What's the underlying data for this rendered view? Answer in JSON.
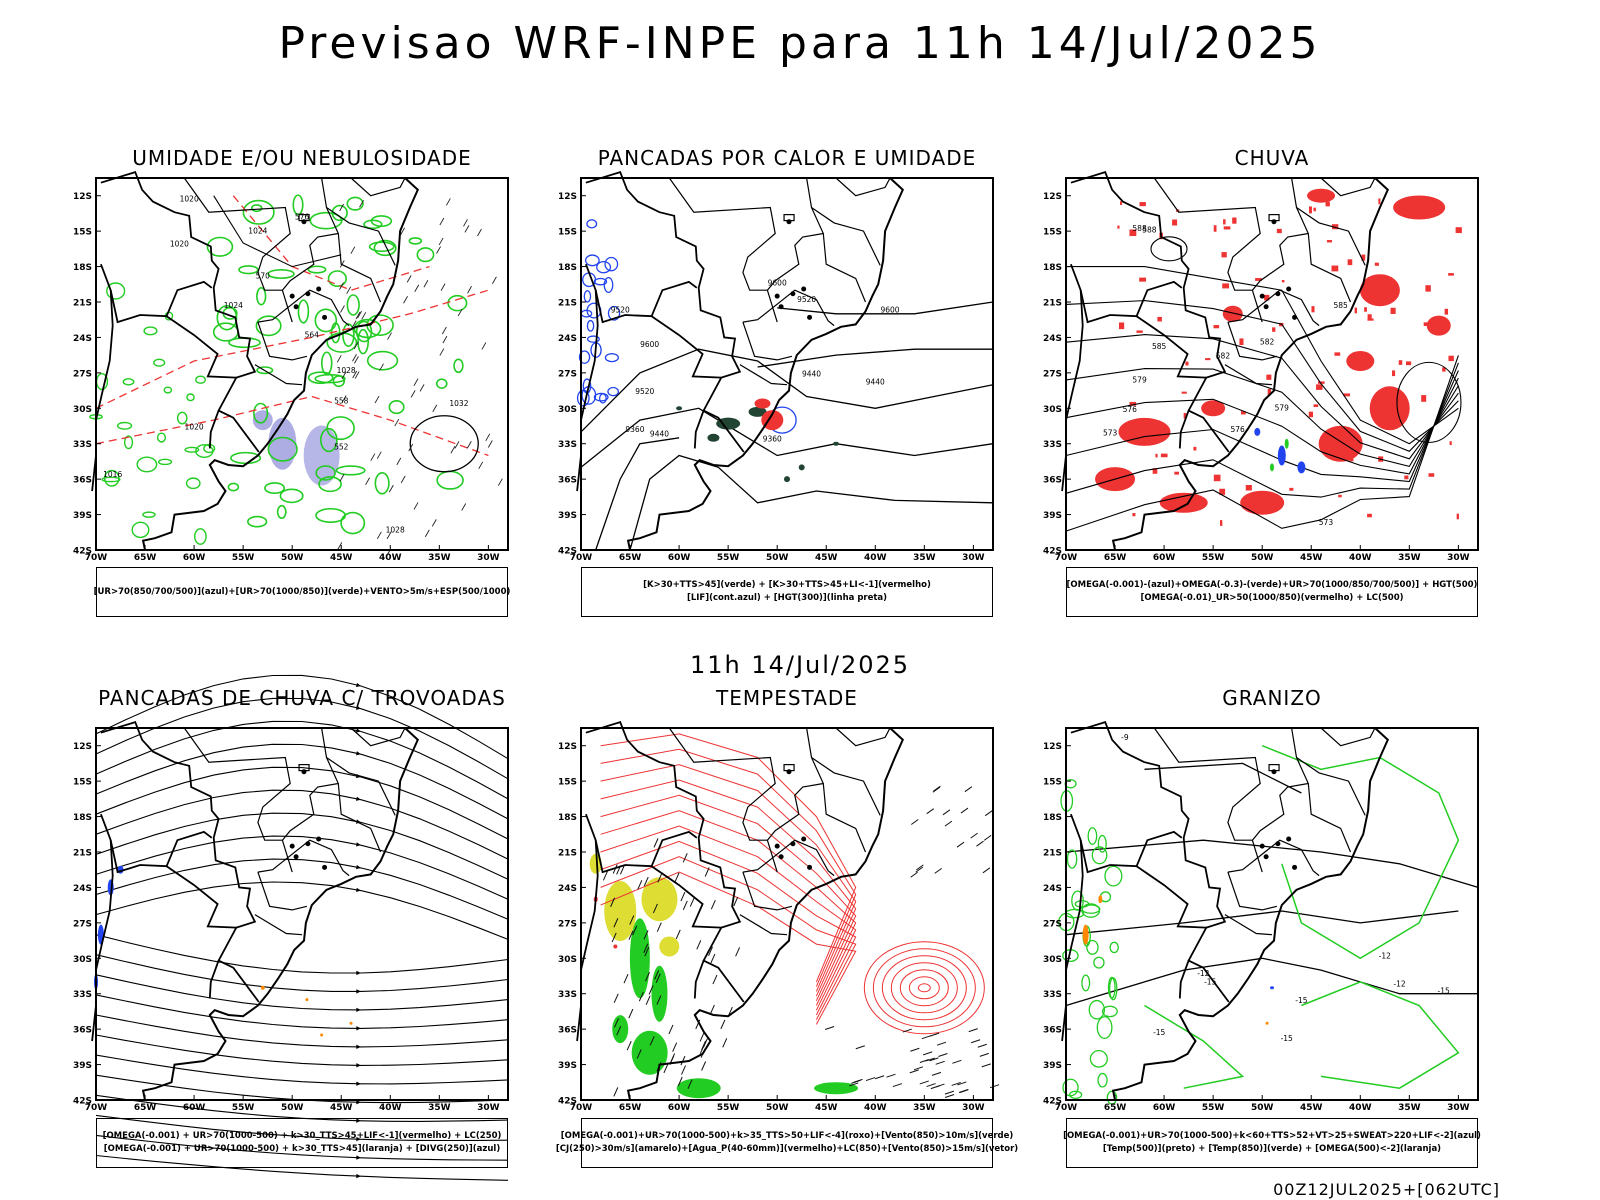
{
  "title": "Previsao WRF-INPE  para 11h 14/Jul/2025",
  "mid_title": "11h 14/Jul/2025",
  "footer": "00Z12JUL2025+[062UTC]",
  "axes": {
    "lat_labels": [
      "12S",
      "15S",
      "18S",
      "21S",
      "24S",
      "27S",
      "30S",
      "33S",
      "36S",
      "39S",
      "42S"
    ],
    "lon_labels": [
      "70W",
      "65W",
      "60W",
      "55W",
      "50W",
      "45W",
      "40W",
      "35W",
      "30W"
    ]
  },
  "colors": {
    "red": "#ee3333",
    "green": "#22cc22",
    "blue": "#2244ee",
    "purple": "#9999dd",
    "yellow": "#dddd33",
    "orange": "#ff8800",
    "dark_green": "#224433"
  },
  "panels": [
    {
      "title": "UMIDADE E/OU NEBULOSIDADE",
      "legend": [
        "[UR>70(850/700/500)](azul)+[UR>70(1000/850)](verde)+VENTO>5m/s+ESP(500/1000)"
      ],
      "contour_labels": [
        "1020",
        "1024",
        "1020",
        "1024",
        "1028",
        "1032",
        "1020",
        "1016",
        "1028",
        "570",
        "576",
        "564",
        "558",
        "552"
      ]
    },
    {
      "title": "PANCADAS POR CALOR E UMIDADE",
      "legend": [
        "[K>30+TTS>45](verde) + [K>30+TTS>45+LI<-1](vermelho)",
        "[LIF](cont.azul) + [HGT(300)](linha preta)"
      ],
      "contour_labels": [
        "9600",
        "9600",
        "9520",
        "9520",
        "9600",
        "9440",
        "9520",
        "9360",
        "9440",
        "9440",
        "9360"
      ]
    },
    {
      "title": "CHUVA",
      "legend": [
        "[OMEGA(-0.001)-(azul)+OMEGA(-0.3)-(verde)+UR>70(1000/850/700/500)] + HGT(500)",
        "[OMEGA(-0.01)_UR>50(1000/850)(vermelho) + LC(500)"
      ],
      "contour_labels": [
        "588",
        "585",
        "582",
        "579",
        "576",
        "573",
        "588",
        "585",
        "582",
        "579",
        "576",
        "573"
      ]
    },
    {
      "title": "PANCADAS DE CHUVA C/ TROVOADAS",
      "legend": [
        "[OMEGA(-0.001) + UR>70(1000-500) + k>30_TTS>45+LIF<-1](vermelho) + LC(250)",
        "[OMEGA(-0.001) + UR>70(1000-500) + k>30_TTS>45](laranja) + [DIVG(250)](azul)"
      ],
      "contour_labels": []
    },
    {
      "title": "TEMPESTADE",
      "legend": [
        "[OMEGA(-0.001)+UR>70(1000-500)+k>35_TTS>50+LIF<-4](roxo)+[Vento(850)>10m/s](verde)",
        "[CJ(250)>30m/s](amarelo)+[Agua_P(40-60mm)](vermelho)+LC(850)+[Vento(850)>15m/s](vetor)"
      ],
      "contour_labels": []
    },
    {
      "title": "GRANIZO",
      "legend": [
        "[OMEGA(-0.001)+UR>70(1000-500)+k<60+TTS>52+VT>25+SWEAT>220+LIF<-2](azul)",
        "[Temp(500)](preto) + [Temp(850)](verde) + [OMEGA(500)<-2](laranja)"
      ],
      "contour_labels": [
        "-9",
        "-12",
        "-12",
        "-15",
        "-15",
        "-12",
        "-15",
        "-15",
        "-15"
      ]
    }
  ]
}
